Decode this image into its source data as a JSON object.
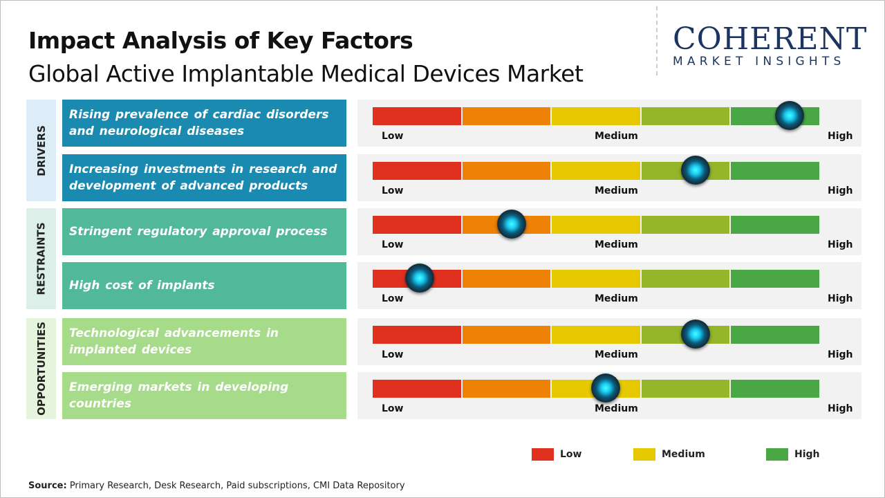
{
  "title": "Impact Analysis of Key Factors",
  "subtitle": "Global Active Implantable Medical Devices Market",
  "logo": {
    "main": "COHERENT",
    "sub": "MARKET INSIGHTS"
  },
  "scale_labels": {
    "low": "Low",
    "medium": "Medium",
    "high": "High"
  },
  "colors": {
    "low": "#e0301e",
    "low_medium": "#ee8207",
    "medium": "#e6c800",
    "medium_high": "#95b52a",
    "high": "#4aa844",
    "drivers": "#1a8ab0",
    "restraints": "#52b89a",
    "opportunities": "#a6db8a"
  },
  "categories": [
    {
      "label": "DRIVERS",
      "bg": "#dcedf8",
      "factors": [
        {
          "text": "Rising prevalence of cardiac disorders and neurological diseases",
          "impact": 0.93
        },
        {
          "text": "Increasing investments in research and development of advanced products",
          "impact": 0.72
        }
      ]
    },
    {
      "label": "RESTRAINTS",
      "bg": "#dcefe9",
      "factors": [
        {
          "text": "Stringent regulatory approval process",
          "impact": 0.31
        },
        {
          "text": "High cost of implants",
          "impact": 0.105
        }
      ]
    },
    {
      "label": "OPPORTUNITIES",
      "bg": "#e5f4dc",
      "factors": [
        {
          "text": "Technological advancements in implanted devices",
          "impact": 0.72
        },
        {
          "text": "Emerging markets in developing countries",
          "impact": 0.52
        }
      ]
    }
  ],
  "legend": [
    {
      "label": "Low",
      "color": "#e0301e"
    },
    {
      "label": "Medium",
      "color": "#e6c800"
    },
    {
      "label": "High",
      "color": "#4aa844"
    }
  ],
  "source": {
    "label": "Source:",
    "text": " Primary Research, Desk Research, Paid subscriptions, CMI Data Repository"
  },
  "chart_data": {
    "type": "gauge",
    "scale": [
      "Low",
      "Medium",
      "High"
    ],
    "range": [
      0,
      1
    ],
    "items": [
      {
        "factor": "Rising prevalence of cardiac disorders and neurological diseases",
        "value": 0.93
      },
      {
        "factor": "Increasing investments in research and development of advanced products",
        "value": 0.72
      },
      {
        "factor": "Stringent regulatory approval process",
        "value": 0.31
      },
      {
        "factor": "High cost of implants",
        "value": 0.105
      },
      {
        "factor": "Technological advancements in implanted devices",
        "value": 0.72
      },
      {
        "factor": "Emerging markets in developing countries",
        "value": 0.52
      }
    ]
  }
}
